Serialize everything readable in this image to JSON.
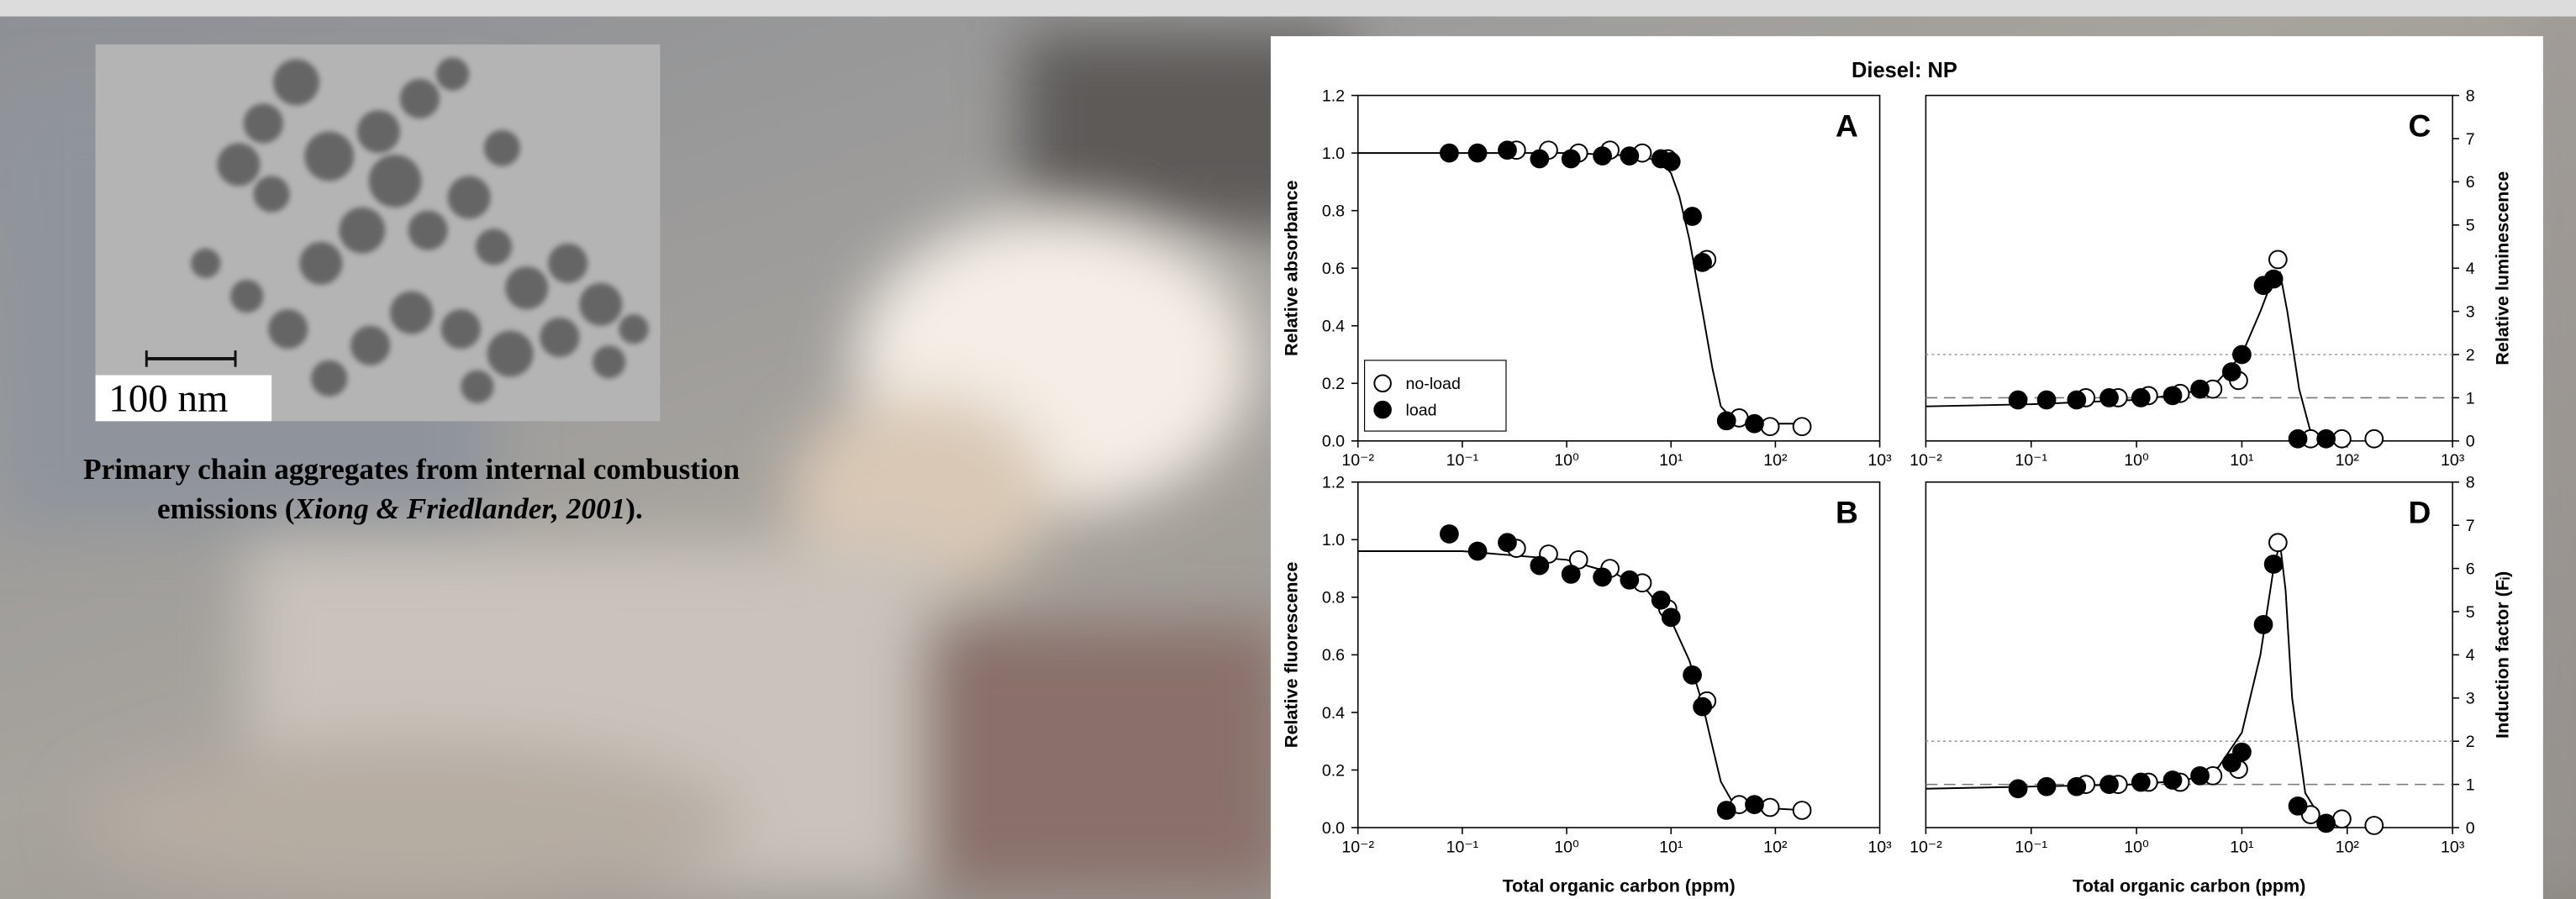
{
  "figure_title": "Diesel: NP",
  "image_label": "100 nm",
  "caption": {
    "line_1": "Primary chain aggregates from internal combustion",
    "line_2_start": "emissions (",
    "citation": "Xiong & Friedlander, 2001",
    "line_2_end": ")."
  },
  "chart_data": [
    {
      "type": "scatter",
      "panel_label": "A",
      "ylabel": "Relative absorbance",
      "xscale": "log",
      "xlim": [
        0.01,
        1000
      ],
      "xticks": [
        {
          "value": 0.01,
          "label": "10⁻²"
        },
        {
          "value": 0.1,
          "label": "10⁻¹"
        },
        {
          "value": 1,
          "label": "10⁰"
        },
        {
          "value": 10,
          "label": "10¹"
        },
        {
          "value": 100,
          "label": "10²"
        },
        {
          "value": 1000,
          "label": "10³"
        }
      ],
      "ylim": [
        0,
        1.2
      ],
      "yticks": [
        {
          "value": 0,
          "label": "0.0"
        },
        0.2,
        0.4,
        0.6,
        0.8,
        {
          "value": 1,
          "label": "1.0"
        },
        1.2
      ],
      "yaxis_side": "left",
      "legend": "lower left",
      "series": [
        {
          "name": "no-load",
          "marker": "open",
          "color": "#000000",
          "x": [
            0.33,
            0.67,
            1.3,
            2.6,
            5.3,
            9.3,
            22,
            45,
            89,
            180
          ],
          "values": [
            1.01,
            1.01,
            1.0,
            1.01,
            1.0,
            0.98,
            0.63,
            0.08,
            0.05,
            0.05
          ]
        },
        {
          "name": "load",
          "marker": "filled",
          "color": "#000000",
          "x": [
            0.075,
            0.14,
            0.27,
            0.55,
            1.1,
            2.2,
            4,
            8,
            10,
            16,
            20,
            34,
            63
          ],
          "values": [
            1.0,
            1.0,
            1.01,
            0.98,
            0.98,
            0.99,
            0.99,
            0.98,
            0.97,
            0.78,
            0.62,
            0.07,
            0.06
          ]
        }
      ],
      "fit": {
        "color": "#000000",
        "x": [
          0.01,
          1,
          5,
          8,
          10,
          12,
          15,
          20,
          25,
          30,
          40,
          60,
          200
        ],
        "values": [
          1.0,
          1.0,
          0.99,
          0.97,
          0.93,
          0.85,
          0.7,
          0.45,
          0.25,
          0.12,
          0.07,
          0.06,
          0.06
        ]
      }
    },
    {
      "type": "scatter",
      "panel_label": "B",
      "ylabel": "Relative fluorescence",
      "xlabel": "Total organic carbon (ppm)",
      "xscale": "log",
      "xlim": [
        0.01,
        1000
      ],
      "xticks": [
        {
          "value": 0.01,
          "label": "10⁻²"
        },
        {
          "value": 0.1,
          "label": "10⁻¹"
        },
        {
          "value": 1,
          "label": "10⁰"
        },
        {
          "value": 10,
          "label": "10¹"
        },
        {
          "value": 100,
          "label": "10²"
        },
        {
          "value": 1000,
          "label": "10³"
        }
      ],
      "ylim": [
        0,
        1.2
      ],
      "yticks": [
        {
          "value": 0,
          "label": "0.0"
        },
        0.2,
        0.4,
        0.6,
        0.8,
        {
          "value": 1,
          "label": "1.0"
        },
        1.2
      ],
      "yaxis_side": "left",
      "series": [
        {
          "marker": "open",
          "color": "#000000",
          "x": [
            0.33,
            0.67,
            1.3,
            2.6,
            5.3,
            9.3,
            22,
            45,
            89,
            180
          ],
          "values": [
            0.97,
            0.95,
            0.93,
            0.9,
            0.85,
            0.76,
            0.44,
            0.08,
            0.07,
            0.06
          ]
        },
        {
          "marker": "filled",
          "color": "#000000",
          "x": [
            0.075,
            0.14,
            0.27,
            0.55,
            1.1,
            2.2,
            4,
            8,
            10,
            16,
            20,
            34,
            63
          ],
          "values": [
            1.02,
            0.96,
            0.99,
            0.91,
            0.88,
            0.87,
            0.86,
            0.79,
            0.73,
            0.53,
            0.42,
            0.06,
            0.08
          ]
        }
      ],
      "fit": {
        "color": "#000000",
        "x": [
          0.01,
          0.1,
          1,
          3,
          6,
          10,
          15,
          20,
          25,
          30,
          40,
          60,
          200
        ],
        "values": [
          0.96,
          0.96,
          0.93,
          0.88,
          0.82,
          0.72,
          0.58,
          0.43,
          0.28,
          0.16,
          0.08,
          0.07,
          0.06
        ]
      }
    },
    {
      "type": "scatter",
      "panel_label": "C",
      "ylabel": "Relative luminescence",
      "xscale": "log",
      "xlim": [
        0.01,
        1000
      ],
      "xticks": [
        {
          "value": 0.01,
          "label": "10⁻²"
        },
        {
          "value": 0.1,
          "label": "10⁻¹"
        },
        {
          "value": 1,
          "label": "10⁰"
        },
        {
          "value": 10,
          "label": "10¹"
        },
        {
          "value": 100,
          "label": "10²"
        },
        {
          "value": 1000,
          "label": "10³"
        }
      ],
      "ylim": [
        0,
        8
      ],
      "yticks": [
        0,
        1,
        2,
        3,
        4,
        5,
        6,
        7,
        8
      ],
      "yaxis_side": "right",
      "reference_lines": [
        {
          "value": 1,
          "style": "dashed"
        },
        {
          "value": 2,
          "style": "dotted"
        }
      ],
      "series": [
        {
          "marker": "open",
          "color": "#000000",
          "x": [
            0.33,
            0.67,
            1.3,
            2.6,
            5.3,
            9.3,
            22,
            45,
            89,
            180
          ],
          "values": [
            1.0,
            1.0,
            1.05,
            1.1,
            1.2,
            1.4,
            4.2,
            0.05,
            0.05,
            0.05
          ]
        },
        {
          "marker": "filled",
          "color": "#000000",
          "x": [
            0.075,
            0.14,
            0.27,
            0.55,
            1.1,
            2.2,
            4,
            8,
            10,
            16,
            20,
            34,
            63
          ],
          "values": [
            0.95,
            0.95,
            0.95,
            1.0,
            1.0,
            1.05,
            1.2,
            1.6,
            2.0,
            3.6,
            3.75,
            0.05,
            0.05
          ]
        }
      ],
      "fit": {
        "color": "#000000",
        "x": [
          0.01,
          0.1,
          1,
          3,
          6,
          10,
          15,
          20,
          23,
          27,
          35,
          45,
          60,
          100
        ],
        "values": [
          0.8,
          0.85,
          0.95,
          1.1,
          1.4,
          2.0,
          3.0,
          3.8,
          3.9,
          3.0,
          1.2,
          0.2,
          0.05,
          0.05
        ]
      }
    },
    {
      "type": "scatter",
      "panel_label": "D",
      "ylabel": "Induction factor (Fᵢ)",
      "xlabel": "Total organic carbon (ppm)",
      "xscale": "log",
      "xlim": [
        0.01,
        1000
      ],
      "xticks": [
        {
          "value": 0.01,
          "label": "10⁻²"
        },
        {
          "value": 0.1,
          "label": "10⁻¹"
        },
        {
          "value": 1,
          "label": "10⁰"
        },
        {
          "value": 10,
          "label": "10¹"
        },
        {
          "value": 100,
          "label": "10²"
        },
        {
          "value": 1000,
          "label": "10³"
        }
      ],
      "ylim": [
        0,
        8
      ],
      "yticks": [
        0,
        1,
        2,
        3,
        4,
        5,
        6,
        7,
        8
      ],
      "yaxis_side": "right",
      "reference_lines": [
        {
          "value": 1,
          "style": "dashed"
        },
        {
          "value": 2,
          "style": "dotted"
        }
      ],
      "series": [
        {
          "marker": "open",
          "color": "#000000",
          "x": [
            0.33,
            0.67,
            1.3,
            2.6,
            5.3,
            9.3,
            22,
            45,
            89,
            180
          ],
          "values": [
            1.0,
            1.0,
            1.05,
            1.05,
            1.2,
            1.35,
            6.6,
            0.3,
            0.2,
            0.05
          ]
        },
        {
          "marker": "filled",
          "color": "#000000",
          "x": [
            0.075,
            0.14,
            0.27,
            0.55,
            1.1,
            2.2,
            4,
            8,
            10,
            16,
            20,
            34,
            63
          ],
          "values": [
            0.9,
            0.95,
            0.95,
            1.0,
            1.05,
            1.1,
            1.2,
            1.5,
            1.75,
            4.7,
            6.1,
            0.5,
            0.1
          ]
        }
      ],
      "fit": {
        "color": "#000000",
        "x": [
          0.01,
          0.1,
          1,
          3,
          6,
          10,
          15,
          20,
          23,
          26,
          30,
          40,
          60,
          100
        ],
        "values": [
          0.9,
          0.95,
          1.0,
          1.1,
          1.4,
          2.2,
          4.0,
          6.0,
          6.6,
          5.5,
          3.0,
          0.8,
          0.1,
          0.05
        ]
      }
    }
  ]
}
